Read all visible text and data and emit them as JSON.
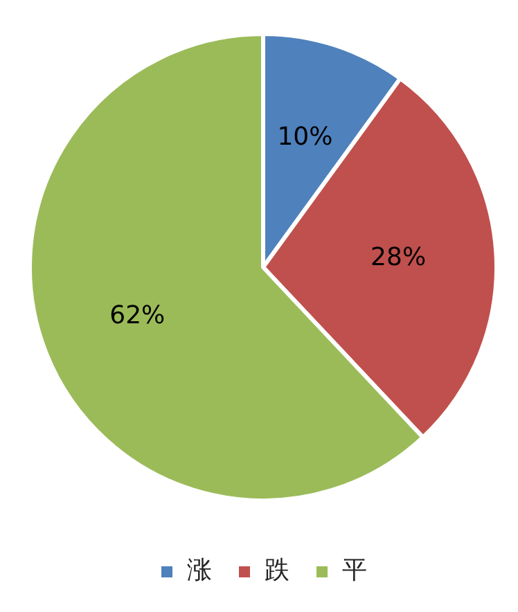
{
  "chart_data": {
    "type": "pie",
    "categories": [
      "涨",
      "跌",
      "平"
    ],
    "values": [
      10,
      28,
      62
    ],
    "colors": [
      "#4f81bd",
      "#c0504d",
      "#9bbb59"
    ],
    "value_labels": [
      "10%",
      "28%",
      "62%"
    ],
    "legend": "bottom"
  }
}
